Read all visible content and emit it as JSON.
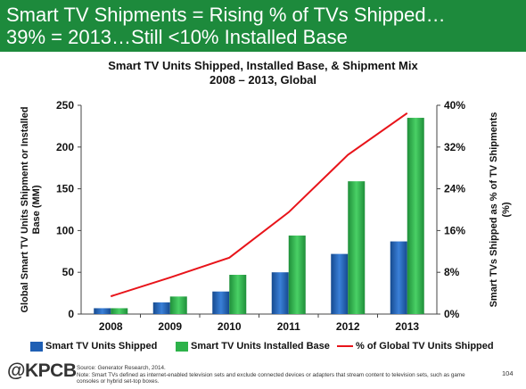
{
  "slide": {
    "headline_line1": "Smart TV Shipments = Rising % of TVs Shipped…",
    "headline_line2": "39% = 2013…Still <10% Installed Base",
    "logo": "@KPCB",
    "source": "Source: Generator Research, 2014.",
    "note": "Note: Smart TVs defined as internet-enabled television sets and exclude connected devices or adapters that stream content to television sets, such as game consoles or hybrid set-top boxes.",
    "page_number": "104"
  },
  "chart_data": {
    "type": "bar",
    "title_line1": "Smart TV Units Shipped, Installed Base, & Shipment Mix",
    "title_line2": "2008 – 2013, Global",
    "ylabel": "Global Smart TV Units Shipment or Installed Base (MM)",
    "y2label": "Smart TVs Shipped as % of TV Shipments (%)",
    "categories": [
      "2008",
      "2009",
      "2010",
      "2011",
      "2012",
      "2013"
    ],
    "ylim": [
      0,
      250
    ],
    "yticks": [
      "0",
      "50",
      "100",
      "150",
      "200",
      "250"
    ],
    "y2lim": [
      0,
      40
    ],
    "y2ticks": [
      "0%",
      "8%",
      "16%",
      "24%",
      "32%",
      "40%"
    ],
    "series": [
      {
        "name": "Smart TV Units Shipped",
        "kind": "bar",
        "axis": "left",
        "color": "#1f5fb4",
        "values": [
          7,
          14,
          27,
          50,
          72,
          87
        ]
      },
      {
        "name": "Smart TV Units Installed Base",
        "kind": "bar",
        "axis": "left",
        "color": "#2db24a",
        "values": [
          7,
          21,
          47,
          94,
          159,
          235
        ]
      },
      {
        "name": "% of Global TV Units Shipped",
        "kind": "line",
        "axis": "right",
        "color": "#e8141a",
        "values": [
          3.4,
          7,
          10.8,
          19.5,
          30.5,
          38.5
        ]
      }
    ],
    "grid": false,
    "legend_position": "bottom"
  }
}
